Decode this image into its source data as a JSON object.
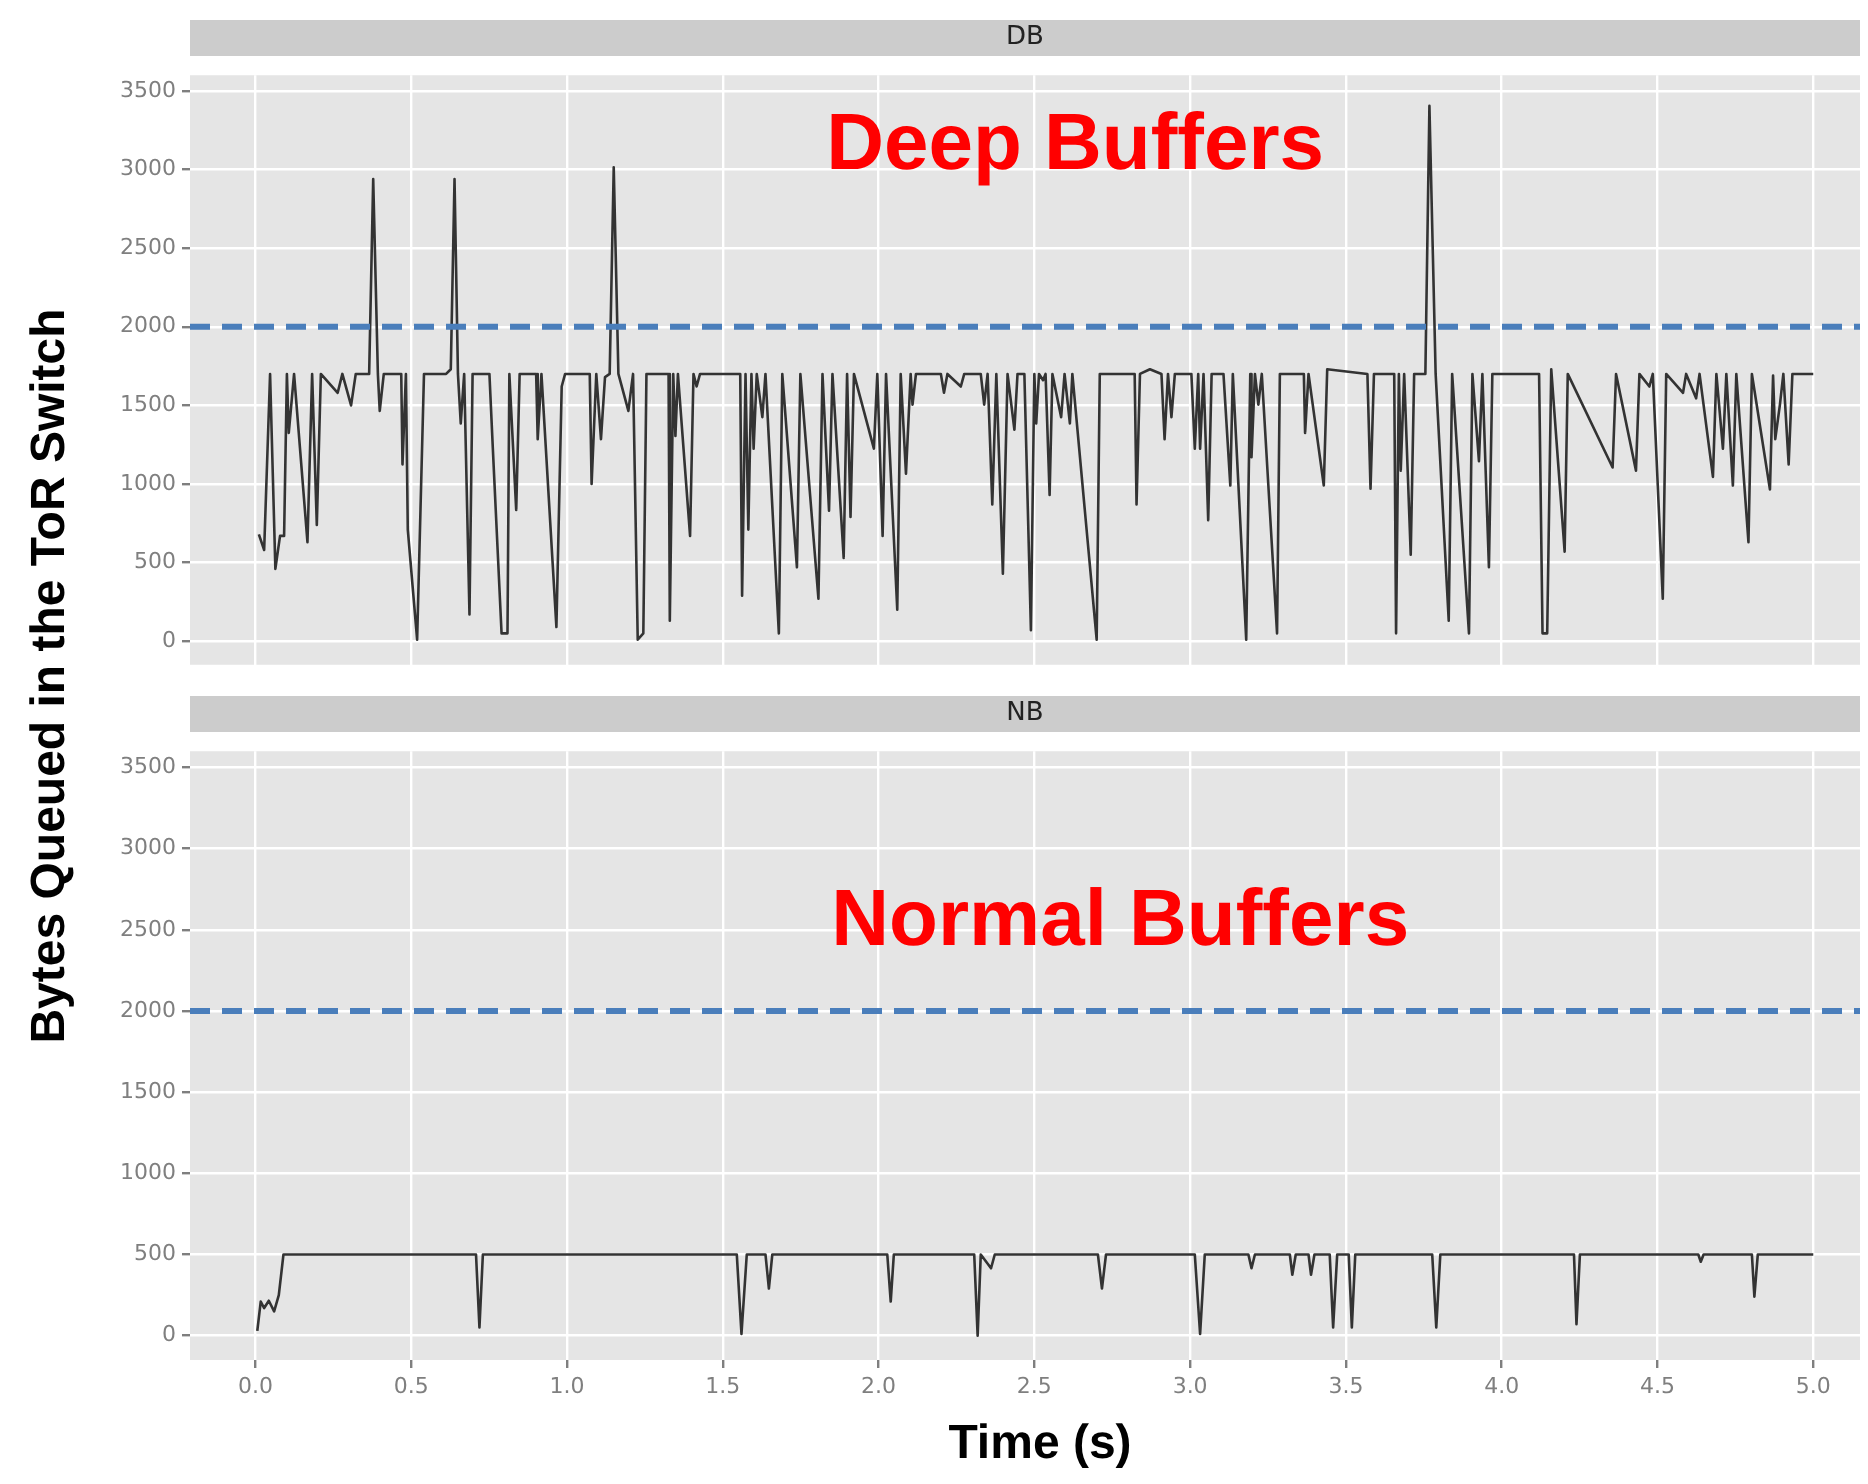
{
  "chart_data": [
    {
      "type": "line",
      "title": "DB",
      "ylabel": "Bytes Queued in the ToR Switch",
      "annotations": [
        "Deep Buffers"
      ],
      "color": "#333333",
      "marker": "none",
      "line_style": "solid",
      "grid": true,
      "tick_labels": "y",
      "xlim": [
        -0.21,
        5.15
      ],
      "xticks": [
        0,
        0.5,
        1,
        1.5,
        2,
        2.5,
        3,
        3.5,
        4,
        4.5,
        5
      ],
      "ylim": [
        -150,
        3600
      ],
      "yticks": [
        0,
        500,
        1000,
        1500,
        2000,
        2500,
        3000,
        3500
      ],
      "ref_lines": [
        {
          "axis": "y",
          "value": 2000,
          "color": "#4a7ebb",
          "line_style": "dashed"
        }
      ],
      "x": [
        0.011,
        0.028,
        0.047,
        0.064,
        0.079,
        0.092,
        0.101,
        0.107,
        0.124,
        0.167,
        0.182,
        0.197,
        0.21,
        0.264,
        0.279,
        0.307,
        0.322,
        0.365,
        0.378,
        0.393,
        0.399,
        0.412,
        0.468,
        0.472,
        0.483,
        0.489,
        0.519,
        0.541,
        0.612,
        0.627,
        0.639,
        0.65,
        0.659,
        0.67,
        0.687,
        0.697,
        0.751,
        0.762,
        0.79,
        0.809,
        0.815,
        0.837,
        0.848,
        0.901,
        0.906,
        0.918,
        0.966,
        0.983,
        0.994,
        1.073,
        1.079,
        1.094,
        1.109,
        1.122,
        1.137,
        1.15,
        1.165,
        1.197,
        1.212,
        1.227,
        1.245,
        1.255,
        1.326,
        1.33,
        1.341,
        1.348,
        1.356,
        1.395,
        1.406,
        1.416,
        1.427,
        1.556,
        1.562,
        1.573,
        1.582,
        1.592,
        1.599,
        1.609,
        1.627,
        1.637,
        1.68,
        1.691,
        1.738,
        1.749,
        1.807,
        1.82,
        1.841,
        1.852,
        1.888,
        1.899,
        1.91,
        1.921,
        1.985,
        1.996,
        2.013,
        2.024,
        2.06,
        2.071,
        2.088,
        2.103,
        2.109,
        2.12,
        2.2,
        2.21,
        2.221,
        2.264,
        2.275,
        2.328,
        2.339,
        2.35,
        2.365,
        2.378,
        2.399,
        2.414,
        2.436,
        2.446,
        2.468,
        2.489,
        2.5,
        2.506,
        2.515,
        2.528,
        2.536,
        2.549,
        2.558,
        2.586,
        2.597,
        2.614,
        2.622,
        2.7,
        2.71,
        2.822,
        2.828,
        2.839,
        2.871,
        2.908,
        2.918,
        2.929,
        2.94,
        2.951,
        3.004,
        3.015,
        3.026,
        3.032,
        3.043,
        3.058,
        3.069,
        3.107,
        3.129,
        3.137,
        3.18,
        3.193,
        3.197,
        3.208,
        3.219,
        3.23,
        3.279,
        3.288,
        3.365,
        3.369,
        3.38,
        3.429,
        3.44,
        3.569,
        3.579,
        3.59,
        3.655,
        3.661,
        3.67,
        3.676,
        3.687,
        3.708,
        3.719,
        3.755,
        3.768,
        3.788,
        3.83,
        3.841,
        3.895,
        3.906,
        3.927,
        3.938,
        3.959,
        3.97,
        4.12,
        4.131,
        4.146,
        4.159,
        4.202,
        4.212,
        4.356,
        4.367,
        4.431,
        4.442,
        4.474,
        4.485,
        4.517,
        4.528,
        4.582,
        4.592,
        4.624,
        4.635,
        4.678,
        4.689,
        4.71,
        4.721,
        4.742,
        4.753,
        4.792,
        4.803,
        4.861,
        4.871,
        4.878,
        4.893,
        4.904,
        4.921,
        4.933,
        5.0
      ],
      "values": [
        680,
        580,
        1700,
        460,
        670,
        670,
        1700,
        1325,
        1700,
        630,
        1700,
        740,
        1700,
        1580,
        1700,
        1500,
        1700,
        1700,
        2940,
        1700,
        1465,
        1700,
        1700,
        1125,
        1700,
        710,
        10,
        1700,
        1700,
        1730,
        2940,
        1700,
        1385,
        1700,
        170,
        1700,
        1700,
        1225,
        50,
        50,
        1700,
        835,
        1700,
        1700,
        1285,
        1700,
        90,
        1620,
        1700,
        1700,
        1000,
        1700,
        1285,
        1680,
        1700,
        3015,
        1700,
        1465,
        1700,
        10,
        50,
        1700,
        1700,
        130,
        1700,
        1305,
        1700,
        670,
        1700,
        1620,
        1700,
        1700,
        290,
        1700,
        710,
        1700,
        1225,
        1700,
        1425,
        1700,
        50,
        1700,
        470,
        1700,
        270,
        1700,
        830,
        1700,
        530,
        1700,
        790,
        1700,
        1225,
        1700,
        670,
        1700,
        200,
        1700,
        1065,
        1700,
        1505,
        1700,
        1700,
        1580,
        1700,
        1620,
        1700,
        1700,
        1505,
        1700,
        870,
        1700,
        430,
        1700,
        1345,
        1700,
        1700,
        70,
        1700,
        1385,
        1700,
        1660,
        1700,
        930,
        1700,
        1425,
        1700,
        1385,
        1700,
        10,
        1700,
        1700,
        870,
        1700,
        1730,
        1700,
        1285,
        1700,
        1425,
        1700,
        1700,
        1225,
        1700,
        1225,
        1700,
        770,
        1700,
        1700,
        990,
        1700,
        10,
        1700,
        1170,
        1700,
        1505,
        1700,
        50,
        1700,
        1700,
        1325,
        1700,
        990,
        1730,
        1700,
        970,
        1700,
        1700,
        50,
        1700,
        1085,
        1700,
        550,
        1700,
        1700,
        3405,
        1700,
        130,
        1700,
        50,
        1700,
        1145,
        1700,
        470,
        1700,
        1700,
        50,
        50,
        1730,
        570,
        1700,
        1105,
        1700,
        1085,
        1700,
        1620,
        1700,
        270,
        1700,
        1580,
        1700,
        1545,
        1700,
        1045,
        1700,
        1225,
        1700,
        990,
        1700,
        630,
        1700,
        965,
        1690,
        1285,
        1505,
        1700,
        1125,
        1700,
        1700
      ]
    },
    {
      "type": "line",
      "title": "NB",
      "xlabel": "Time (s)",
      "annotations": [
        "Normal Buffers"
      ],
      "color": "#333333",
      "marker": "none",
      "line_style": "solid",
      "grid": true,
      "xlim": [
        -0.21,
        5.15
      ],
      "xticks": [
        {
          "value": 0,
          "label": "0.0"
        },
        {
          "value": 0.5,
          "label": "0.5"
        },
        {
          "value": 1,
          "label": "1.0"
        },
        {
          "value": 1.5,
          "label": "1.5"
        },
        {
          "value": 2,
          "label": "2.0"
        },
        {
          "value": 2.5,
          "label": "2.5"
        },
        {
          "value": 3,
          "label": "3.0"
        },
        {
          "value": 3.5,
          "label": "3.5"
        },
        {
          "value": 4,
          "label": "4.0"
        },
        {
          "value": 4.5,
          "label": "4.5"
        },
        {
          "value": 5,
          "label": "5.0"
        }
      ],
      "ylim": [
        -150,
        3600
      ],
      "yticks": [
        0,
        500,
        1000,
        1500,
        2000,
        2500,
        3000,
        3500
      ],
      "ref_lines": [
        {
          "axis": "y",
          "value": 2000,
          "color": "#4a7ebb",
          "line_style": "dashed"
        }
      ],
      "x": [
        0.006,
        0.017,
        0.028,
        0.043,
        0.06,
        0.075,
        0.09,
        0.708,
        0.719,
        0.73,
        1.545,
        1.56,
        1.577,
        1.637,
        1.648,
        1.659,
        2.028,
        2.039,
        2.049,
        2.307,
        2.318,
        2.328,
        2.361,
        2.373,
        2.704,
        2.717,
        2.73,
        3.015,
        3.032,
        3.047,
        3.187,
        3.197,
        3.208,
        3.32,
        3.328,
        3.339,
        3.38,
        3.388,
        3.399,
        3.448,
        3.459,
        3.472,
        3.509,
        3.519,
        3.53,
        3.777,
        3.79,
        3.803,
        4.232,
        4.24,
        4.251,
        4.631,
        4.639,
        4.648,
        4.803,
        4.811,
        4.822,
        5.0
      ],
      "values": [
        30,
        210,
        170,
        215,
        150,
        250,
        500,
        500,
        50,
        500,
        500,
        10,
        500,
        500,
        290,
        500,
        500,
        210,
        500,
        500,
        0,
        500,
        415,
        500,
        500,
        290,
        500,
        500,
        10,
        500,
        500,
        415,
        500,
        500,
        375,
        500,
        500,
        375,
        500,
        500,
        50,
        500,
        500,
        50,
        500,
        500,
        50,
        500,
        500,
        70,
        500,
        500,
        455,
        500,
        500,
        240,
        500,
        500
      ]
    }
  ]
}
